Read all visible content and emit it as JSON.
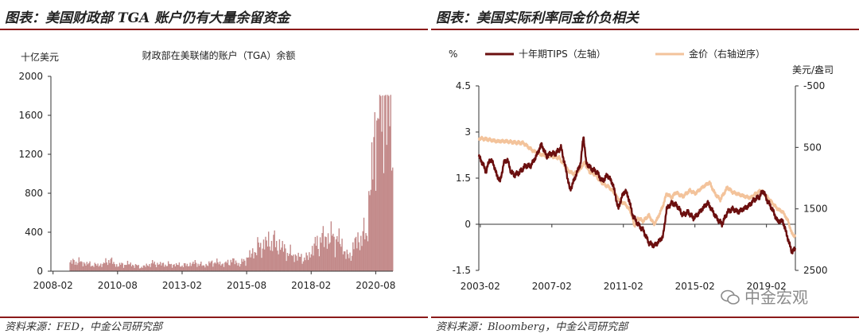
{
  "left_panel": {
    "header_title": "图表：美国财政部 TGA 账户仍有大量余留资金",
    "source": "资料来源：FED，中金公司研究部",
    "chart_data": {
      "type": "bar",
      "title": "财政部在美联储的账户（TGA）余额",
      "ylabel": "十亿美元",
      "xlabel": "",
      "ylim": [
        0,
        2000
      ],
      "yticks": [
        "0",
        "400",
        "800",
        "1200",
        "1600",
        "2000"
      ],
      "xticks": [
        "2008-02",
        "2010-08",
        "2013-02",
        "2015-08",
        "2018-02",
        "2020-08"
      ],
      "x_range": [
        2008.0,
        2021.25
      ],
      "color": "#c38a8a",
      "grid": false,
      "anchors": [
        [
          2008.0,
          5
        ],
        [
          2008.5,
          6
        ],
        [
          2008.7,
          90
        ],
        [
          2009.0,
          100
        ],
        [
          2009.3,
          80
        ],
        [
          2009.7,
          60
        ],
        [
          2010.0,
          70
        ],
        [
          2010.25,
          120
        ],
        [
          2010.5,
          60
        ],
        [
          2011.0,
          75
        ],
        [
          2011.5,
          40
        ],
        [
          2011.9,
          80
        ],
        [
          2012.3,
          70
        ],
        [
          2012.8,
          65
        ],
        [
          2013.2,
          60
        ],
        [
          2013.6,
          85
        ],
        [
          2013.9,
          55
        ],
        [
          2014.3,
          95
        ],
        [
          2014.7,
          70
        ],
        [
          2015.0,
          110
        ],
        [
          2015.3,
          70
        ],
        [
          2015.7,
          160
        ],
        [
          2016.0,
          240
        ],
        [
          2016.5,
          310
        ],
        [
          2016.9,
          250
        ],
        [
          2017.2,
          180
        ],
        [
          2017.6,
          140
        ],
        [
          2017.9,
          130
        ],
        [
          2018.2,
          260
        ],
        [
          2018.5,
          330
        ],
        [
          2018.9,
          350
        ],
        [
          2019.2,
          300
        ],
        [
          2019.5,
          130
        ],
        [
          2019.8,
          300
        ],
        [
          2020.2,
          380
        ],
        [
          2020.45,
          1100
        ],
        [
          2020.6,
          1650
        ],
        [
          2020.75,
          1700
        ],
        [
          2020.9,
          1750
        ],
        [
          2021.1,
          1600
        ],
        [
          2021.25,
          1580
        ]
      ]
    }
  },
  "right_panel": {
    "header_title": "图表：美国实际利率同金价负相关",
    "source": "资料来源：Bloomberg，中金公司研究部",
    "chart_data": {
      "type": "line",
      "title": "",
      "left_axis_unit": "%",
      "right_axis_unit": "美元/盎司",
      "left_ylim": [
        -1.5,
        4.5
      ],
      "left_yticks": [
        "4.5",
        "3",
        "1.5",
        "0",
        "-1.5"
      ],
      "right_ylim": [
        -500,
        2500
      ],
      "right_axis_reversed": true,
      "right_yticks": [
        "-500",
        "500",
        "1500",
        "2500"
      ],
      "xticks": [
        "2003-02",
        "2007-02",
        "2011-02",
        "2015-02",
        "2019-02"
      ],
      "x_range": [
        2003.0,
        2020.7
      ],
      "grid": false,
      "legend_position": "top",
      "series": [
        {
          "name": "十年期TIPS（左轴）",
          "axis": "left",
          "color": "#6b0f0f",
          "points": [
            [
              2003.0,
              2.2
            ],
            [
              2003.2,
              2.0
            ],
            [
              2003.4,
              1.7
            ],
            [
              2003.6,
              2.1
            ],
            [
              2003.8,
              2.0
            ],
            [
              2004.0,
              1.6
            ],
            [
              2004.2,
              1.4
            ],
            [
              2004.4,
              2.0
            ],
            [
              2004.6,
              2.1
            ],
            [
              2004.8,
              1.7
            ],
            [
              2005.0,
              1.6
            ],
            [
              2005.3,
              1.7
            ],
            [
              2005.6,
              1.9
            ],
            [
              2005.9,
              1.9
            ],
            [
              2006.2,
              2.2
            ],
            [
              2006.5,
              2.6
            ],
            [
              2006.8,
              2.2
            ],
            [
              2007.0,
              2.3
            ],
            [
              2007.3,
              2.3
            ],
            [
              2007.6,
              2.5
            ],
            [
              2007.9,
              1.7
            ],
            [
              2008.1,
              1.1
            ],
            [
              2008.3,
              1.4
            ],
            [
              2008.5,
              1.7
            ],
            [
              2008.7,
              2.0
            ],
            [
              2008.85,
              2.9
            ],
            [
              2009.0,
              2.0
            ],
            [
              2009.3,
              1.8
            ],
            [
              2009.6,
              1.7
            ],
            [
              2009.9,
              1.4
            ],
            [
              2010.2,
              1.6
            ],
            [
              2010.5,
              1.3
            ],
            [
              2010.8,
              0.5
            ],
            [
              2011.0,
              0.9
            ],
            [
              2011.2,
              1.1
            ],
            [
              2011.4,
              0.8
            ],
            [
              2011.6,
              0.3
            ],
            [
              2011.9,
              0.0
            ],
            [
              2012.2,
              -0.2
            ],
            [
              2012.5,
              -0.6
            ],
            [
              2012.8,
              -0.7
            ],
            [
              2013.0,
              -0.6
            ],
            [
              2013.3,
              -0.4
            ],
            [
              2013.5,
              0.5
            ],
            [
              2013.8,
              0.7
            ],
            [
              2014.1,
              0.6
            ],
            [
              2014.4,
              0.3
            ],
            [
              2014.7,
              0.4
            ],
            [
              2015.0,
              0.2
            ],
            [
              2015.2,
              0.3
            ],
            [
              2015.5,
              0.5
            ],
            [
              2015.8,
              0.7
            ],
            [
              2016.1,
              0.4
            ],
            [
              2016.3,
              0.2
            ],
            [
              2016.6,
              0.0
            ],
            [
              2016.9,
              0.4
            ],
            [
              2017.2,
              0.5
            ],
            [
              2017.5,
              0.4
            ],
            [
              2017.8,
              0.5
            ],
            [
              2018.1,
              0.6
            ],
            [
              2018.4,
              0.8
            ],
            [
              2018.7,
              0.9
            ],
            [
              2018.9,
              1.1
            ],
            [
              2019.1,
              0.8
            ],
            [
              2019.4,
              0.5
            ],
            [
              2019.7,
              0.1
            ],
            [
              2020.0,
              0.1
            ],
            [
              2020.2,
              -0.3
            ],
            [
              2020.5,
              -0.9
            ],
            [
              2020.7,
              -0.8
            ]
          ]
        },
        {
          "name": "金价（右轴逆序）",
          "axis": "right",
          "color": "#f3c39b",
          "points": [
            [
              2003.0,
              350
            ],
            [
              2003.5,
              370
            ],
            [
              2004.0,
              400
            ],
            [
              2004.5,
              400
            ],
            [
              2005.0,
              420
            ],
            [
              2005.5,
              430
            ],
            [
              2006.0,
              550
            ],
            [
              2006.5,
              620
            ],
            [
              2007.0,
              640
            ],
            [
              2007.5,
              670
            ],
            [
              2008.0,
              880
            ],
            [
              2008.3,
              930
            ],
            [
              2008.6,
              880
            ],
            [
              2008.9,
              750
            ],
            [
              2009.2,
              900
            ],
            [
              2009.5,
              940
            ],
            [
              2009.8,
              1050
            ],
            [
              2010.0,
              1100
            ],
            [
              2010.3,
              1150
            ],
            [
              2010.6,
              1250
            ],
            [
              2010.9,
              1380
            ],
            [
              2011.2,
              1420
            ],
            [
              2011.5,
              1550
            ],
            [
              2011.7,
              1780
            ],
            [
              2011.9,
              1650
            ],
            [
              2012.2,
              1700
            ],
            [
              2012.5,
              1600
            ],
            [
              2012.8,
              1750
            ],
            [
              2013.0,
              1650
            ],
            [
              2013.3,
              1450
            ],
            [
              2013.5,
              1250
            ],
            [
              2013.8,
              1320
            ],
            [
              2014.0,
              1230
            ],
            [
              2014.4,
              1300
            ],
            [
              2014.8,
              1200
            ],
            [
              2015.1,
              1250
            ],
            [
              2015.5,
              1150
            ],
            [
              2015.9,
              1070
            ],
            [
              2016.2,
              1250
            ],
            [
              2016.5,
              1350
            ],
            [
              2016.9,
              1150
            ],
            [
              2017.2,
              1230
            ],
            [
              2017.6,
              1270
            ],
            [
              2017.9,
              1300
            ],
            [
              2018.2,
              1320
            ],
            [
              2018.5,
              1250
            ],
            [
              2018.8,
              1200
            ],
            [
              2019.1,
              1300
            ],
            [
              2019.4,
              1400
            ],
            [
              2019.7,
              1500
            ],
            [
              2020.0,
              1550
            ],
            [
              2020.3,
              1700
            ],
            [
              2020.5,
              1900
            ],
            [
              2020.7,
              1950
            ]
          ]
        }
      ]
    }
  },
  "watermark": "中金宏观"
}
